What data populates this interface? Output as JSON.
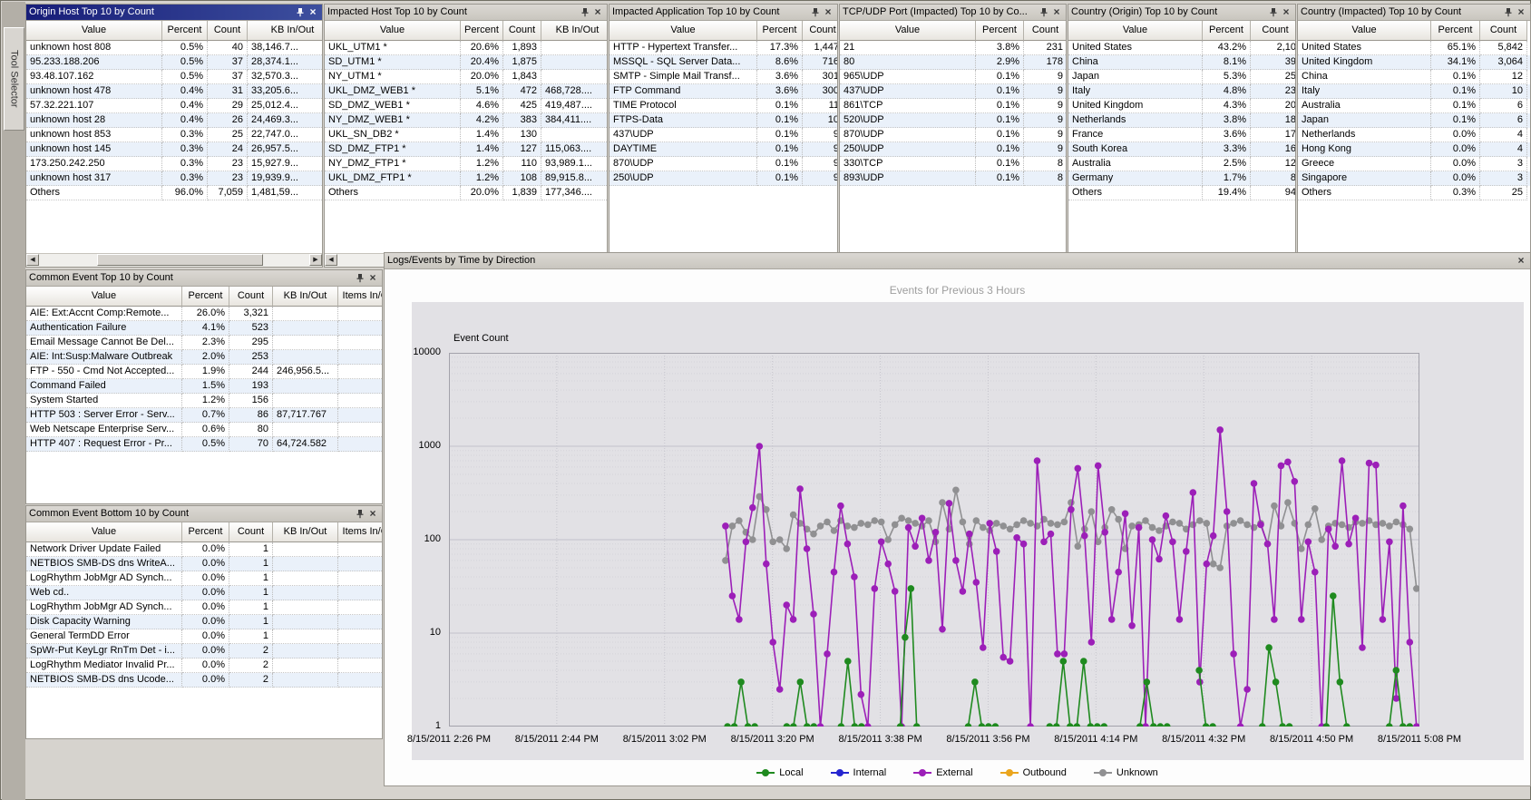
{
  "tool_selector": {
    "label": "Tool Selector"
  },
  "colors": {
    "active_titlebar": "#171d78",
    "row_alt": "#eaf1fa",
    "plot_background": "#e2e1e5"
  },
  "grids": {
    "origin_host": {
      "title": "Origin Host Top 10 by Count",
      "columns": [
        "Value",
        "Percent",
        "Count",
        "KB In/Out"
      ],
      "rows": [
        [
          "unknown host 808",
          "0.5%",
          "40",
          "38,146.7..."
        ],
        [
          "95.233.188.206",
          "0.5%",
          "37",
          "28,374.1..."
        ],
        [
          "93.48.107.162",
          "0.5%",
          "37",
          "32,570.3..."
        ],
        [
          "unknown host 478",
          "0.4%",
          "31",
          "33,205.6..."
        ],
        [
          "57.32.221.107",
          "0.4%",
          "29",
          "25,012.4..."
        ],
        [
          "unknown host 28",
          "0.4%",
          "26",
          "24,469.3..."
        ],
        [
          "unknown host 853",
          "0.3%",
          "25",
          "22,747.0..."
        ],
        [
          "unknown host 145",
          "0.3%",
          "24",
          "26,957.5..."
        ],
        [
          "173.250.242.250",
          "0.3%",
          "23",
          "15,927.9..."
        ],
        [
          "unknown host 317",
          "0.3%",
          "23",
          "19,939.9..."
        ],
        [
          "Others",
          "96.0%",
          "7,059",
          "1,481,59..."
        ]
      ]
    },
    "impacted_host": {
      "title": "Impacted Host Top 10 by Count",
      "columns": [
        "Value",
        "Percent",
        "Count",
        "KB In/Out"
      ],
      "rows": [
        [
          "UKL_UTM1 *",
          "20.6%",
          "1,893",
          ""
        ],
        [
          "SD_UTM1 *",
          "20.4%",
          "1,875",
          ""
        ],
        [
          "NY_UTM1 *",
          "20.0%",
          "1,843",
          ""
        ],
        [
          "UKL_DMZ_WEB1 *",
          "5.1%",
          "472",
          "468,728...."
        ],
        [
          "SD_DMZ_WEB1 *",
          "4.6%",
          "425",
          "419,487...."
        ],
        [
          "NY_DMZ_WEB1 *",
          "4.2%",
          "383",
          "384,411...."
        ],
        [
          "UKL_SN_DB2 *",
          "1.4%",
          "130",
          ""
        ],
        [
          "SD_DMZ_FTP1 *",
          "1.4%",
          "127",
          "115,063...."
        ],
        [
          "NY_DMZ_FTP1 *",
          "1.2%",
          "110",
          "93,989.1..."
        ],
        [
          "UKL_DMZ_FTP1 *",
          "1.2%",
          "108",
          "89,915.8..."
        ],
        [
          "Others",
          "20.0%",
          "1,839",
          "177,346...."
        ]
      ]
    },
    "impacted_application": {
      "title": "Impacted Application Top 10 by Count",
      "columns": [
        "Value",
        "Percent",
        "Count"
      ],
      "rows": [
        [
          "HTTP - Hypertext Transfer...",
          "17.3%",
          "1,447"
        ],
        [
          "MSSQL - SQL Server Data...",
          "8.6%",
          "716"
        ],
        [
          "SMTP - Simple Mail Transf...",
          "3.6%",
          "301"
        ],
        [
          "FTP Command",
          "3.6%",
          "300"
        ],
        [
          "TIME Protocol",
          "0.1%",
          "11"
        ],
        [
          "FTPS-Data",
          "0.1%",
          "10"
        ],
        [
          "437\\UDP",
          "0.1%",
          "9"
        ],
        [
          "DAYTIME",
          "0.1%",
          "9"
        ],
        [
          "870\\UDP",
          "0.1%",
          "9"
        ],
        [
          "250\\UDP",
          "0.1%",
          "9"
        ]
      ]
    },
    "tcp_udp_port": {
      "title": "TCP/UDP Port (Impacted) Top 10 by Co...",
      "columns": [
        "Value",
        "Percent",
        "Count"
      ],
      "rows": [
        [
          "21",
          "3.8%",
          "231"
        ],
        [
          "80",
          "2.9%",
          "178"
        ],
        [
          "965\\UDP",
          "0.1%",
          "9"
        ],
        [
          "437\\UDP",
          "0.1%",
          "9"
        ],
        [
          "861\\TCP",
          "0.1%",
          "9"
        ],
        [
          "520\\UDP",
          "0.1%",
          "9"
        ],
        [
          "870\\UDP",
          "0.1%",
          "9"
        ],
        [
          "250\\UDP",
          "0.1%",
          "9"
        ],
        [
          "330\\TCP",
          "0.1%",
          "8"
        ],
        [
          "893\\UDP",
          "0.1%",
          "8"
        ]
      ]
    },
    "country_origin": {
      "title": "Country (Origin) Top 10 by Count",
      "columns": [
        "Value",
        "Percent",
        "Count"
      ],
      "rows": [
        [
          "United States",
          "43.2%",
          "2,10"
        ],
        [
          "China",
          "8.1%",
          "39"
        ],
        [
          "Japan",
          "5.3%",
          "25"
        ],
        [
          "Italy",
          "4.8%",
          "23"
        ],
        [
          "United Kingdom",
          "4.3%",
          "20"
        ],
        [
          "Netherlands",
          "3.8%",
          "18"
        ],
        [
          "France",
          "3.6%",
          "17"
        ],
        [
          "South Korea",
          "3.3%",
          "16"
        ],
        [
          "Australia",
          "2.5%",
          "12"
        ],
        [
          "Germany",
          "1.7%",
          "8"
        ],
        [
          "Others",
          "19.4%",
          "94"
        ]
      ]
    },
    "country_impacted": {
      "title": "Country (Impacted) Top 10 by Count",
      "columns": [
        "Value",
        "Percent",
        "Count"
      ],
      "rows": [
        [
          "United States",
          "65.1%",
          "5,842"
        ],
        [
          "United Kingdom",
          "34.1%",
          "3,064"
        ],
        [
          "China",
          "0.1%",
          "12"
        ],
        [
          "Italy",
          "0.1%",
          "10"
        ],
        [
          "Australia",
          "0.1%",
          "6"
        ],
        [
          "Japan",
          "0.1%",
          "6"
        ],
        [
          "Netherlands",
          "0.0%",
          "4"
        ],
        [
          "Hong Kong",
          "0.0%",
          "4"
        ],
        [
          "Greece",
          "0.0%",
          "3"
        ],
        [
          "Singapore",
          "0.0%",
          "3"
        ],
        [
          "Others",
          "0.3%",
          "25"
        ]
      ]
    },
    "common_event_top": {
      "title": "Common Event Top 10 by Count",
      "columns": [
        "Value",
        "Percent",
        "Count",
        "KB In/Out",
        "Items In/Out"
      ],
      "rows": [
        [
          "AIE:  Ext:Accnt Comp:Remote...",
          "26.0%",
          "3,321",
          "",
          ""
        ],
        [
          "Authentication Failure",
          "4.1%",
          "523",
          "",
          ""
        ],
        [
          "Email Message Cannot Be Del...",
          "2.3%",
          "295",
          "",
          ""
        ],
        [
          "AIE: Int:Susp:Malware Outbreak",
          "2.0%",
          "253",
          "",
          ""
        ],
        [
          "FTP - 550 - Cmd Not Accepted...",
          "1.9%",
          "244",
          "246,956.5...",
          ""
        ],
        [
          "Command Failed",
          "1.5%",
          "193",
          "",
          ""
        ],
        [
          "System Started",
          "1.2%",
          "156",
          "",
          ""
        ],
        [
          "HTTP 503 : Server Error - Serv...",
          "0.7%",
          "86",
          "87,717.767",
          ""
        ],
        [
          "Web Netscape Enterprise Serv...",
          "0.6%",
          "80",
          "",
          ""
        ],
        [
          "HTTP 407 : Request Error - Pr...",
          "0.5%",
          "70",
          "64,724.582",
          ""
        ]
      ]
    },
    "common_event_bottom": {
      "title": "Common Event Bottom 10 by Count",
      "columns": [
        "Value",
        "Percent",
        "Count",
        "KB In/Out",
        "Items In/Out"
      ],
      "rows": [
        [
          "Network Driver Update Failed",
          "0.0%",
          "1",
          "",
          ""
        ],
        [
          "NETBIOS SMB-DS dns  WriteA...",
          "0.0%",
          "1",
          "",
          ""
        ],
        [
          "LogRhythm JobMgr AD Synch...",
          "0.0%",
          "1",
          "",
          ""
        ],
        [
          "Web cd..",
          "0.0%",
          "1",
          "",
          ""
        ],
        [
          "LogRhythm JobMgr AD Synch...",
          "0.0%",
          "1",
          "",
          ""
        ],
        [
          "Disk Capacity Warning",
          "0.0%",
          "1",
          "",
          ""
        ],
        [
          "General TermDD Error",
          "0.0%",
          "1",
          "",
          ""
        ],
        [
          "SpWr-Put KeyLgr RnTm Det - i...",
          "0.0%",
          "2",
          "",
          ""
        ],
        [
          "LogRhythm Mediator Invalid Pr...",
          "0.0%",
          "2",
          "",
          ""
        ],
        [
          "NETBIOS SMB-DS dns  Ucode...",
          "0.0%",
          "2",
          "",
          ""
        ]
      ]
    }
  },
  "chart_panel": {
    "title_bar": "Logs/Events by Time by Direction",
    "chart_title": "Events for Previous 3 Hours",
    "y_axis_label": "Event Count",
    "chart_data": {
      "type": "line",
      "y_scale": "log",
      "y_range": [
        1,
        10000
      ],
      "y_ticks": [
        "10000",
        "1000",
        "100",
        "10",
        "1"
      ],
      "x_labels": [
        "8/15/2011 2:26 PM",
        "8/15/2011 2:44 PM",
        "8/15/2011 3:02 PM",
        "8/15/2011 3:20 PM",
        "8/15/2011 3:38 PM",
        "8/15/2011 3:56 PM",
        "8/15/2011 4:14 PM",
        "8/15/2011 4:32 PM",
        "8/15/2011 4:50 PM",
        "8/15/2011 5:08 PM"
      ],
      "legend_position": "bottom",
      "grid": true,
      "series": [
        {
          "name": "Local",
          "color": "#1f8a1f",
          "segments": [
            [
              [
                0.287,
                1
              ],
              [
                0.294,
                1
              ],
              [
                0.301,
                3
              ],
              [
                0.308,
                1
              ],
              [
                0.315,
                1
              ]
            ],
            [
              [
                0.348,
                1
              ],
              [
                0.355,
                1
              ],
              [
                0.362,
                3
              ],
              [
                0.369,
                1
              ],
              [
                0.376,
                1
              ]
            ],
            [
              [
                0.404,
                1
              ],
              [
                0.411,
                5
              ],
              [
                0.418,
                1
              ],
              [
                0.425,
                1
              ]
            ],
            [
              [
                0.465,
                1
              ],
              [
                0.47,
                9
              ],
              [
                0.476,
                30
              ],
              [
                0.482,
                1
              ]
            ],
            [
              [
                0.535,
                1
              ],
              [
                0.542,
                3
              ],
              [
                0.549,
                1
              ],
              [
                0.556,
                1
              ],
              [
                0.563,
                1
              ]
            ],
            [
              [
                0.619,
                1
              ],
              [
                0.626,
                1
              ],
              [
                0.633,
                5
              ],
              [
                0.64,
                1
              ],
              [
                0.647,
                1
              ],
              [
                0.654,
                5
              ],
              [
                0.661,
                1
              ],
              [
                0.668,
                1
              ],
              [
                0.675,
                1
              ]
            ],
            [
              [
                0.712,
                1
              ],
              [
                0.719,
                3
              ],
              [
                0.726,
                1
              ],
              [
                0.733,
                1
              ],
              [
                0.74,
                1
              ]
            ],
            [
              [
                0.773,
                4
              ],
              [
                0.78,
                1
              ],
              [
                0.787,
                1
              ]
            ],
            [
              [
                0.838,
                1
              ],
              [
                0.845,
                7
              ],
              [
                0.852,
                3
              ],
              [
                0.859,
                1
              ],
              [
                0.866,
                1
              ]
            ],
            [
              [
                0.904,
                1
              ],
              [
                0.911,
                25
              ],
              [
                0.918,
                3
              ],
              [
                0.925,
                1
              ]
            ],
            [
              [
                0.969,
                1
              ],
              [
                0.976,
                4
              ],
              [
                0.983,
                1
              ],
              [
                0.99,
                1
              ]
            ]
          ]
        },
        {
          "name": "Internal",
          "color": "#2525cf",
          "segments": []
        },
        {
          "name": "External",
          "color": "#9c1fb8",
          "x_start": 0.285,
          "x_end": 0.997,
          "values": [
            140,
            25,
            14,
            95,
            220,
            1000,
            55,
            8,
            2.5,
            20,
            14,
            350,
            80,
            16,
            1,
            6,
            45,
            230,
            90,
            40,
            2.2,
            1,
            30,
            95,
            55,
            28,
            1,
            135,
            85,
            170,
            60,
            120,
            11,
            245,
            60,
            28,
            115,
            35,
            7,
            150,
            75,
            5.5,
            5,
            105,
            90,
            1,
            700,
            95,
            115,
            6,
            6,
            210,
            580,
            110,
            8,
            620,
            120,
            14,
            45,
            190,
            12,
            135,
            1,
            100,
            62,
            180,
            95,
            14,
            75,
            320,
            3,
            55,
            110,
            1500,
            200,
            6,
            1,
            2.5,
            400,
            145,
            90,
            14,
            620,
            680,
            420,
            14,
            95,
            45,
            1,
            130,
            85,
            700,
            90,
            170,
            7,
            660,
            630,
            14,
            95,
            2,
            230,
            8,
            1
          ]
        },
        {
          "name": "Outbound",
          "color": "#eaa51d",
          "segments": []
        },
        {
          "name": "Unknown",
          "color": "#909092",
          "x_start": 0.285,
          "x_end": 0.997,
          "values": [
            60,
            140,
            160,
            120,
            100,
            290,
            210,
            95,
            100,
            80,
            185,
            150,
            130,
            115,
            140,
            155,
            125,
            160,
            140,
            135,
            150,
            145,
            160,
            155,
            100,
            145,
            170,
            160,
            150,
            140,
            160,
            95,
            250,
            130,
            340,
            155,
            90,
            160,
            135,
            125,
            150,
            140,
            130,
            145,
            160,
            150,
            140,
            165,
            150,
            145,
            155,
            250,
            85,
            130,
            200,
            95,
            135,
            210,
            165,
            80,
            140,
            145,
            160,
            135,
            125,
            140,
            155,
            150,
            130,
            145,
            160,
            150,
            55,
            50,
            140,
            150,
            160,
            145,
            135,
            150,
            90,
            230,
            140,
            250,
            150,
            80,
            145,
            215,
            100,
            140,
            150,
            145,
            135,
            155,
            150,
            160,
            145,
            150,
            140,
            155,
            145,
            130,
            30
          ]
        }
      ]
    }
  }
}
